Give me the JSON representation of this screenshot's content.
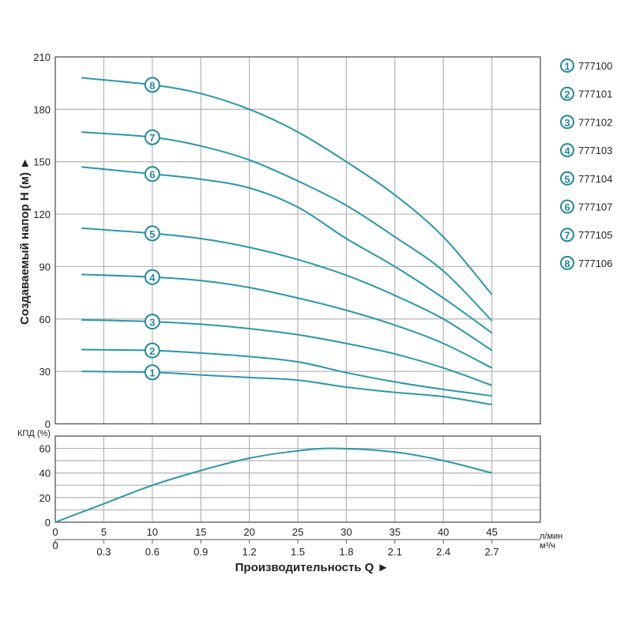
{
  "chart_data": [
    {
      "type": "line",
      "ylabel": "Создаваемый напор H (м) ►",
      "ylim": [
        0,
        210
      ],
      "yticks": [
        0,
        30,
        60,
        90,
        120,
        150,
        180,
        210
      ],
      "xlim": [
        0,
        50
      ],
      "grid": true,
      "legend_placement": "right",
      "x": [
        2.7,
        10,
        15,
        20,
        25,
        30,
        35,
        40,
        45
      ],
      "series": [
        {
          "marker": "1",
          "name": "777100",
          "values": [
            30,
            29.5,
            28,
            26.5,
            25,
            21,
            18,
            15.6,
            11
          ]
        },
        {
          "marker": "2",
          "name": "777101",
          "values": [
            42.5,
            42,
            40.5,
            38.5,
            35.5,
            29.3,
            24,
            19.7,
            16
          ]
        },
        {
          "marker": "3",
          "name": "777102",
          "values": [
            59.5,
            58.5,
            57,
            54.5,
            51,
            46,
            40,
            32,
            22
          ]
        },
        {
          "marker": "4",
          "name": "777103",
          "values": [
            85.5,
            84,
            82,
            78,
            72,
            65,
            56.5,
            46,
            32
          ]
        },
        {
          "marker": "5",
          "name": "777104",
          "values": [
            112,
            109,
            106,
            101,
            94,
            85,
            73.5,
            60,
            42
          ]
        },
        {
          "marker": "6",
          "name": "777107",
          "values": [
            147,
            143,
            140,
            135,
            124,
            106,
            90,
            72,
            52
          ]
        },
        {
          "marker": "7",
          "name": "777105",
          "values": [
            167,
            164,
            159,
            151,
            139,
            125,
            107,
            87.5,
            59
          ]
        },
        {
          "marker": "8",
          "name": "777106",
          "values": [
            198,
            194,
            189,
            180,
            167,
            150,
            131,
            107,
            74
          ]
        }
      ],
      "marker_x": 10
    },
    {
      "type": "line",
      "ylabel": "КПД (%)",
      "ylim": [
        0,
        70
      ],
      "yticks": [
        0,
        20,
        40,
        60
      ],
      "xlim": [
        0,
        50
      ],
      "grid": true,
      "x": [
        0,
        5,
        10,
        15,
        20,
        25,
        29,
        35,
        40,
        45
      ],
      "values": [
        0,
        15,
        30,
        42,
        52,
        58,
        60,
        57,
        50,
        40
      ]
    }
  ],
  "x_axis": {
    "ticks_lmin": [
      "0",
      "5",
      "10",
      "15",
      "20",
      "25",
      "30",
      "35",
      "40",
      "45"
    ],
    "unit_lmin": "л/мин",
    "ticks_m3h": [
      "0",
      "0.3",
      "0.6",
      "0.9",
      "1.2",
      "1.5",
      "1.8",
      "2.1",
      "2.4",
      "2.7"
    ],
    "unit_m3h": "м³/ч",
    "title": "Производительность Q ►"
  },
  "colors": {
    "curve": "#2a98a8",
    "marker": "#23899a",
    "grid": "#b4b4b4",
    "frame": "#555555"
  }
}
